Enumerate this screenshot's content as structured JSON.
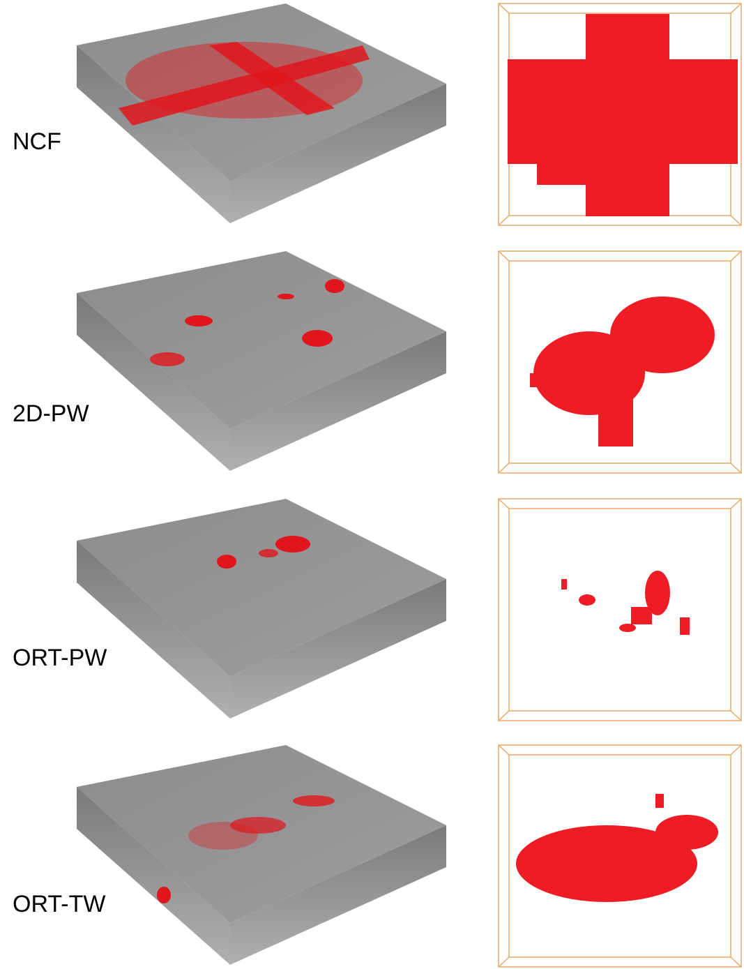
{
  "rows": [
    {
      "label": "NCF"
    },
    {
      "label": "2D-PW"
    },
    {
      "label": "ORT-PW"
    },
    {
      "label": "ORT-TW"
    }
  ]
}
